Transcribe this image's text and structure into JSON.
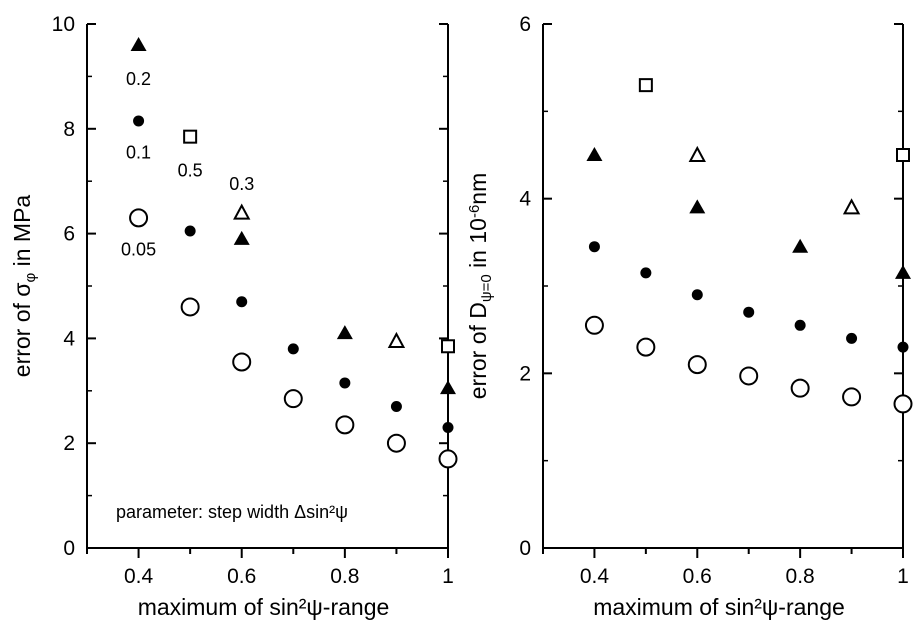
{
  "chart_data": [
    {
      "type": "scatter",
      "xlabel": "maximum of  sin²ψ-range",
      "ylabel": "error of σ_φ in MPa",
      "ylabel_main": "error of σ",
      "ylabel_sub": "φ",
      "ylabel_tail": " in MPa",
      "xlim": [
        0.3,
        1.0
      ],
      "ylim": [
        0,
        10
      ],
      "xticks": [
        0.4,
        0.6,
        0.8,
        1.0
      ],
      "xtick_labels": [
        "0.4",
        "0.6",
        "0.8",
        "1"
      ],
      "yticks": [
        0,
        2,
        4,
        6,
        8,
        10
      ],
      "ytick_labels": [
        "0",
        "2",
        "4",
        "6",
        "8",
        "10"
      ],
      "grid": false,
      "note": "parameter: step width  Δsin²ψ",
      "series": [
        {
          "name": "0.05",
          "marker": "open-circle",
          "x": [
            0.4,
            0.5,
            0.6,
            0.7,
            0.8,
            0.9,
            1.0
          ],
          "y": [
            6.3,
            4.6,
            3.55,
            2.85,
            2.35,
            2.0,
            1.7
          ]
        },
        {
          "name": "0.1",
          "marker": "filled-circle",
          "x": [
            0.4,
            0.5,
            0.6,
            0.7,
            0.8,
            0.9,
            1.0
          ],
          "y": [
            8.15,
            6.05,
            4.7,
            3.8,
            3.15,
            2.7,
            2.3
          ]
        },
        {
          "name": "0.2",
          "marker": "filled-triangle",
          "x": [
            0.4,
            0.6,
            0.8,
            1.0
          ],
          "y": [
            9.6,
            5.9,
            4.1,
            3.05
          ]
        },
        {
          "name": "0.3",
          "marker": "open-triangle",
          "x": [
            0.6,
            0.9
          ],
          "y": [
            6.4,
            3.95
          ]
        },
        {
          "name": "0.5",
          "marker": "open-square",
          "x": [
            0.5,
            1.0
          ],
          "y": [
            7.85,
            3.85
          ]
        }
      ],
      "annotations": [
        {
          "text": "0.2",
          "x": 0.4,
          "y": 8.95
        },
        {
          "text": "0.1",
          "x": 0.4,
          "y": 7.55
        },
        {
          "text": "0.5",
          "x": 0.5,
          "y": 7.2
        },
        {
          "text": "0.3",
          "x": 0.6,
          "y": 6.95
        },
        {
          "text": "0.05",
          "x": 0.4,
          "y": 5.7
        }
      ]
    },
    {
      "type": "scatter",
      "xlabel": "maximum of  sin²ψ-range",
      "ylabel": "error of D_ψ=0 in 10⁻⁶nm",
      "ylabel_main": "error of D",
      "ylabel_sub": "ψ=0",
      "ylabel_tail": " in 10",
      "ylabel_sup": "-6",
      "ylabel_end": "nm",
      "xlim": [
        0.3,
        1.0
      ],
      "ylim": [
        0,
        6
      ],
      "xticks": [
        0.4,
        0.6,
        0.8,
        1.0
      ],
      "xtick_labels": [
        "0.4",
        "0.6",
        "0.8",
        "1"
      ],
      "yticks": [
        0,
        2,
        4,
        6
      ],
      "ytick_labels": [
        "0",
        "2",
        "4",
        "6"
      ],
      "grid": false,
      "series": [
        {
          "name": "0.05",
          "marker": "open-circle",
          "x": [
            0.4,
            0.5,
            0.6,
            0.7,
            0.8,
            0.9,
            1.0
          ],
          "y": [
            2.55,
            2.3,
            2.1,
            1.97,
            1.83,
            1.73,
            1.65
          ]
        },
        {
          "name": "0.1",
          "marker": "filled-circle",
          "x": [
            0.4,
            0.5,
            0.6,
            0.7,
            0.8,
            0.9,
            1.0
          ],
          "y": [
            3.45,
            3.15,
            2.9,
            2.7,
            2.55,
            2.4,
            2.3
          ]
        },
        {
          "name": "0.2",
          "marker": "filled-triangle",
          "x": [
            0.4,
            0.6,
            0.8,
            1.0
          ],
          "y": [
            4.5,
            3.9,
            3.45,
            3.15
          ]
        },
        {
          "name": "0.3",
          "marker": "open-triangle",
          "x": [
            0.6,
            0.9
          ],
          "y": [
            4.5,
            3.9
          ]
        },
        {
          "name": "0.5",
          "marker": "open-square",
          "x": [
            0.5,
            1.0
          ],
          "y": [
            5.3,
            4.5
          ]
        }
      ],
      "annotations": []
    }
  ]
}
